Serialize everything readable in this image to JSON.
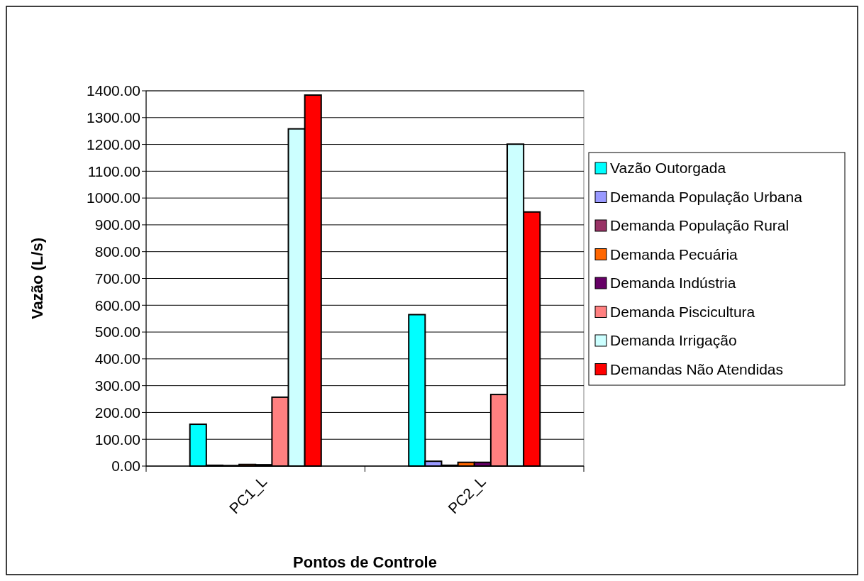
{
  "chart_data": {
    "type": "bar",
    "xlabel": "Pontos de Controle",
    "ylabel": "Vazão (L/s)",
    "categories": [
      "PC1_L",
      "PC2_L"
    ],
    "series": [
      {
        "name": "Vazão Outorgada",
        "color": "#00ffff",
        "values": [
          156,
          565
        ]
      },
      {
        "name": "Demanda População Urbana",
        "color": "#9999ff",
        "values": [
          3,
          18
        ]
      },
      {
        "name": "Demanda População Rural",
        "color": "#993366",
        "values": [
          2,
          3
        ]
      },
      {
        "name": "Demanda Pecuária",
        "color": "#ff6600",
        "values": [
          6,
          14
        ]
      },
      {
        "name": "Demanda Indústria",
        "color": "#660066",
        "values": [
          5,
          14
        ]
      },
      {
        "name": "Demanda Piscicultura",
        "color": "#ff8080",
        "values": [
          257,
          267
        ]
      },
      {
        "name": "Demanda Irrigação",
        "color": "#ccffff",
        "values": [
          1258,
          1201
        ]
      },
      {
        "name": "Demandas Não Atendidas",
        "color": "#ff0000",
        "values": [
          1384,
          948
        ]
      }
    ],
    "ylim": [
      0,
      1400
    ],
    "yticks": [
      {
        "value": 0,
        "label": "0.00"
      },
      {
        "value": 100,
        "label": "100.00"
      },
      {
        "value": 200,
        "label": "200.00"
      },
      {
        "value": 300,
        "label": "300.00"
      },
      {
        "value": 400,
        "label": "400.00"
      },
      {
        "value": 500,
        "label": "500.00"
      },
      {
        "value": 600,
        "label": "600.00"
      },
      {
        "value": 700,
        "label": "700.00"
      },
      {
        "value": 800,
        "label": "800.00"
      },
      {
        "value": 900,
        "label": "900.00"
      },
      {
        "value": 1000,
        "label": "1000.00"
      },
      {
        "value": 1100,
        "label": "1100.00"
      },
      {
        "value": 1200,
        "label": "1200.00"
      },
      {
        "value": 1300,
        "label": "1300.00"
      },
      {
        "value": 1400,
        "label": "1400.00"
      }
    ],
    "grid": "y",
    "legend": "right"
  }
}
